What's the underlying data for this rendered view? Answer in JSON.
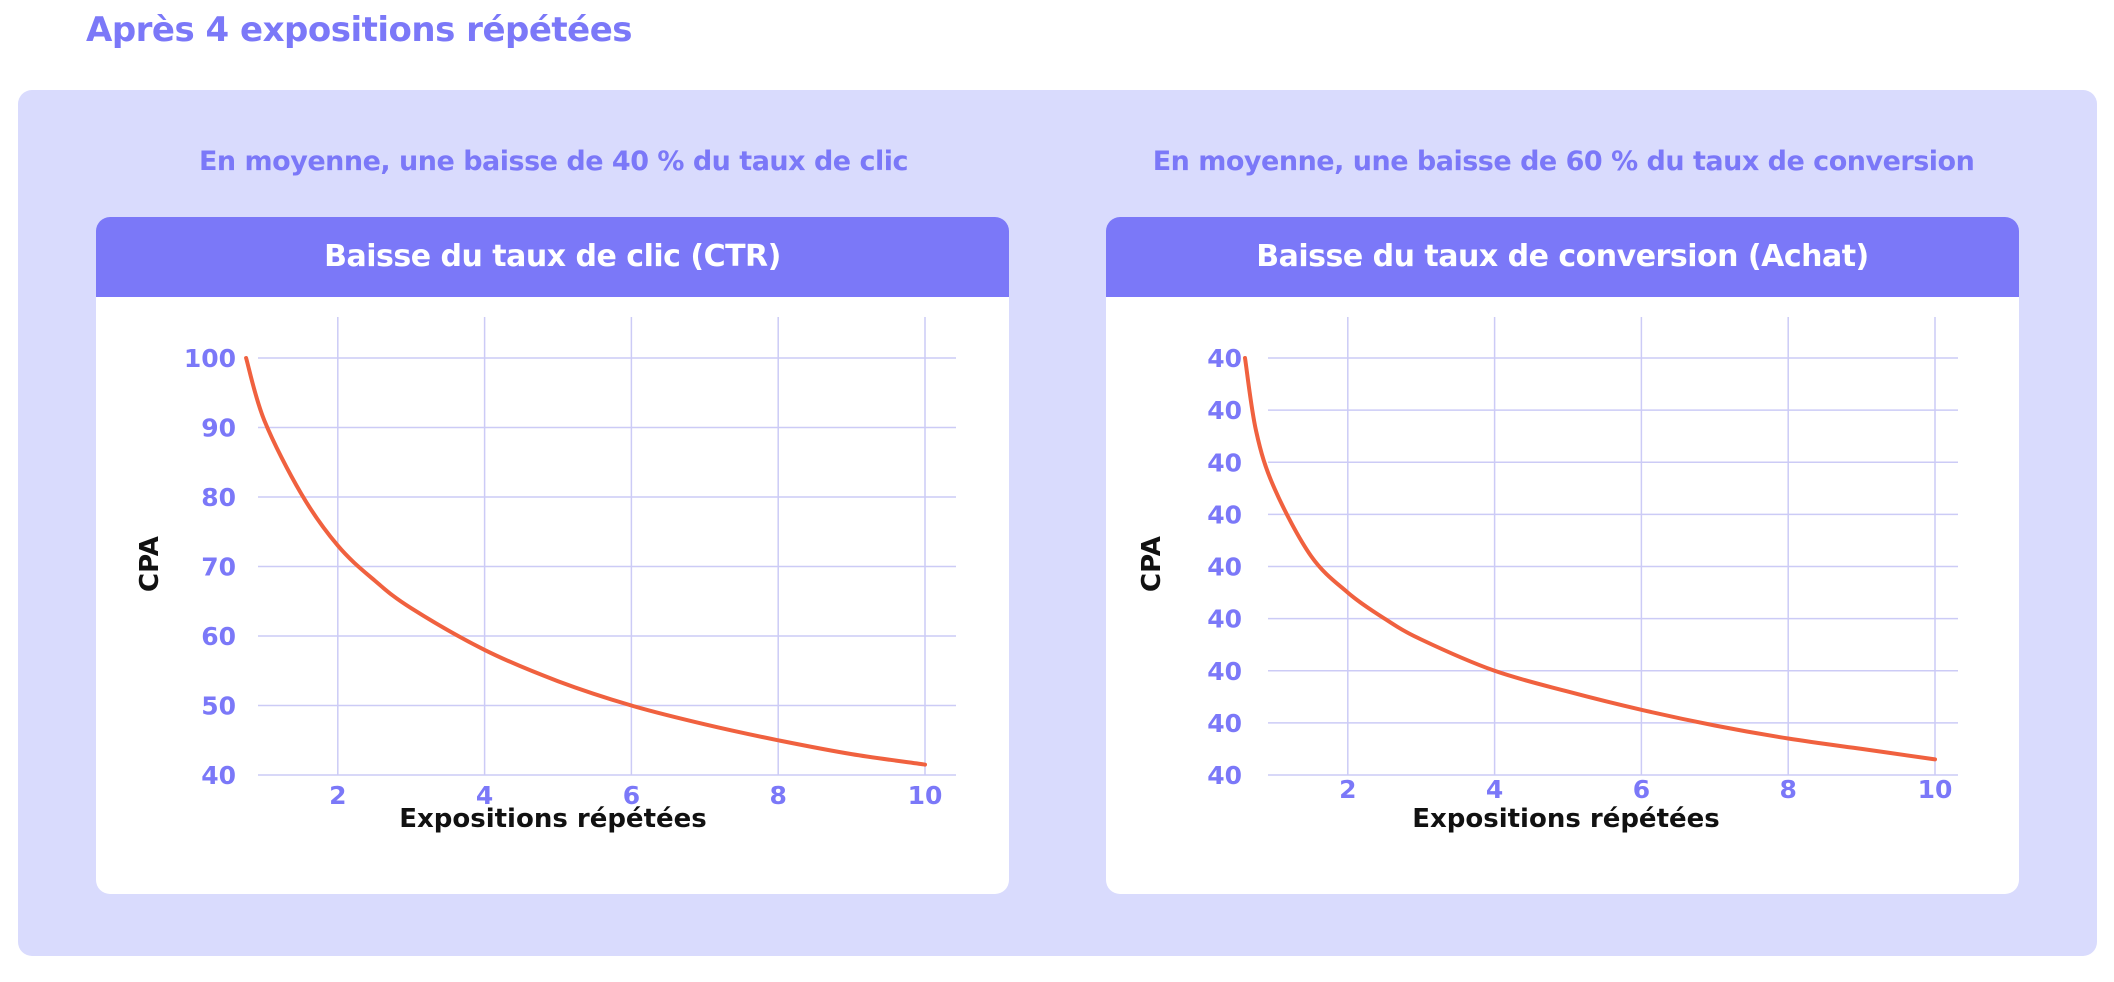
{
  "page": {
    "title": "Après 4 expositions répétées"
  },
  "colors": {
    "accent": "#7B78F8",
    "panel_bg": "#D9DBFD",
    "grid": "#CCCBF6",
    "curve": "#F0613F",
    "axis_title": "#111111"
  },
  "charts": [
    {
      "subtitle": "En moyenne, une baisse de 40 % du taux de clic"
    },
    {
      "subtitle": "En moyenne, une baisse de 60 % du taux de conversion"
    }
  ],
  "chart_data": [
    {
      "type": "line",
      "title": "Baisse du taux de clic (CTR)",
      "xlabel": "Expositions répétées",
      "ylabel": "CPA",
      "xlim": [
        0,
        10
      ],
      "ylim": [
        40,
        100
      ],
      "x_ticks": [
        "2",
        "4",
        "6",
        "8",
        "10"
      ],
      "y_ticks": [
        "100",
        "90",
        "80",
        "70",
        "60",
        "50",
        "40"
      ],
      "grid": true,
      "series": [
        {
          "x": [
            0.75,
            1,
            1.5,
            2,
            2.5,
            3,
            4,
            5,
            6,
            7,
            8,
            9,
            10
          ],
          "values": [
            100,
            91,
            80.5,
            73,
            68,
            64,
            58,
            53.5,
            50,
            47.3,
            45,
            43,
            41.5
          ]
        }
      ]
    },
    {
      "type": "line",
      "title": "Baisse du taux de conversion (Achat)",
      "xlabel": "Expositions répétées",
      "ylabel": "CPA",
      "xlim": [
        0,
        10
      ],
      "ylim": [
        0,
        8
      ],
      "x_ticks": [
        "2",
        "4",
        "6",
        "8",
        "10"
      ],
      "y_ticks": [
        "40",
        "40",
        "40",
        "40",
        "40",
        "40",
        "40",
        "40",
        "40"
      ],
      "grid": true,
      "series": [
        {
          "x": [
            0.6,
            0.75,
            1,
            1.5,
            2,
            2.5,
            3,
            4,
            5,
            6,
            7,
            8,
            9,
            10
          ],
          "values": [
            8,
            6.6,
            5.5,
            4.2,
            3.5,
            3.0,
            2.6,
            2.0,
            1.6,
            1.25,
            0.95,
            0.7,
            0.5,
            0.3
          ]
        }
      ]
    }
  ]
}
